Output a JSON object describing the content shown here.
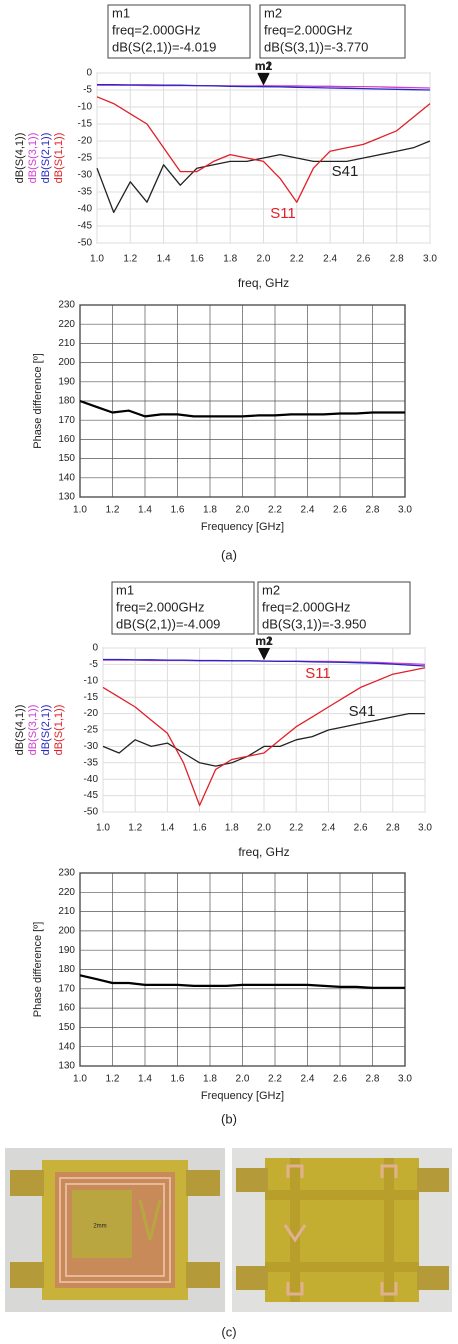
{
  "chart_data": [
    {
      "type": "line",
      "panel": "sparam",
      "x_label": "freq, GHz",
      "legend": "left-rotated",
      "grid": true,
      "x": [
        1.0,
        1.1,
        1.2,
        1.3,
        1.4,
        1.5,
        1.6,
        1.7,
        1.8,
        1.9,
        2.0,
        2.1,
        2.2,
        2.3,
        2.4,
        2.5,
        2.6,
        2.7,
        2.8,
        2.9,
        3.0
      ],
      "series": [
        {
          "name": "dB(S(4,1))",
          "color": "#222222",
          "values": [
            -28,
            -41,
            -32,
            -38,
            -27,
            -33,
            -28,
            -27,
            -26,
            -26,
            -25,
            -24,
            -25,
            -26,
            -26,
            -26,
            -25,
            -24,
            -23,
            -22,
            -20
          ]
        },
        {
          "name": "dB(S(3,1))",
          "color": "#d040d0",
          "values": [
            -3.6,
            -3.6,
            -3.6,
            -3.7,
            -3.7,
            -3.7,
            -3.7,
            -3.7,
            -3.8,
            -3.8,
            -3.77,
            -3.8,
            -3.8,
            -3.9,
            -3.9,
            -4,
            -4,
            -4.1,
            -4.2,
            -4.3,
            -4.4
          ]
        },
        {
          "name": "dB(S(2,1))",
          "color": "#2828c0",
          "values": [
            -3.4,
            -3.4,
            -3.5,
            -3.5,
            -3.6,
            -3.6,
            -3.7,
            -3.8,
            -3.9,
            -4,
            -4.02,
            -4.1,
            -4.2,
            -4.3,
            -4.4,
            -4.5,
            -4.6,
            -4.7,
            -4.8,
            -4.9,
            -5.0
          ]
        },
        {
          "name": "dB(S(1,1))",
          "color": "#e02028",
          "values": [
            -7,
            -9,
            -12,
            -15,
            -22,
            -29,
            -29,
            -26,
            -24,
            -25,
            -26,
            -31,
            -38,
            -28,
            -23,
            -22,
            -21,
            -19,
            -17,
            -13,
            -9
          ]
        }
      ],
      "annotations": [
        "S41",
        "S11"
      ],
      "markers": [
        {
          "name": "m1",
          "freq": 2.0,
          "freq_label": "freq=2.000GHz",
          "value": -4.019,
          "value_label": "dB(S(2,1))=-4.019"
        },
        {
          "name": "m2",
          "freq": 2.0,
          "freq_label": "freq=2.000GHz",
          "value": -3.77,
          "value_label": "dB(S(3,1))=-3.770"
        }
      ],
      "xlim": [
        1,
        3
      ],
      "ylim": [
        -50,
        0
      ],
      "xticks": [
        {
          "value": 1,
          "label": "1.0"
        },
        {
          "value": 1.2,
          "label": "1.2"
        },
        {
          "value": 1.4,
          "label": "1.4"
        },
        {
          "value": 1.6,
          "label": "1.6"
        },
        {
          "value": 1.8,
          "label": "1.8"
        },
        {
          "value": 2,
          "label": "2.0"
        },
        {
          "value": 2.2,
          "label": "2.2"
        },
        {
          "value": 2.4,
          "label": "2.4"
        },
        {
          "value": 2.6,
          "label": "2.6"
        },
        {
          "value": 2.8,
          "label": "2.8"
        },
        {
          "value": 3,
          "label": "3.0"
        }
      ],
      "yticks": [
        0,
        -5,
        -10,
        -15,
        -20,
        -25,
        -30,
        -35,
        -40,
        -45,
        -50
      ]
    },
    {
      "type": "line",
      "panel": "phase",
      "x_label": "Frequency [GHz]",
      "y_label": "Phase difference [º]",
      "grid": true,
      "x": [
        1.0,
        1.1,
        1.2,
        1.3,
        1.4,
        1.5,
        1.6,
        1.7,
        1.8,
        1.9,
        2.0,
        2.1,
        2.2,
        2.3,
        2.4,
        2.5,
        2.6,
        2.7,
        2.8,
        2.9,
        3.0
      ],
      "series": [
        {
          "name": null,
          "color": "#000000",
          "values": [
            180,
            177,
            174,
            175,
            172,
            173,
            173,
            172,
            172,
            172,
            172,
            172.5,
            172.5,
            173,
            173,
            173,
            173.5,
            173.5,
            174,
            174,
            174
          ]
        }
      ],
      "xlim": [
        1,
        3
      ],
      "ylim": [
        130,
        230
      ],
      "xticks": [
        {
          "value": 1,
          "label": "1.0"
        },
        {
          "value": 1.2,
          "label": "1.2"
        },
        {
          "value": 1.4,
          "label": "1.4"
        },
        {
          "value": 1.6,
          "label": "1.6"
        },
        {
          "value": 1.8,
          "label": "1.8"
        },
        {
          "value": 2,
          "label": "2.0"
        },
        {
          "value": 2.2,
          "label": "2.2"
        },
        {
          "value": 2.4,
          "label": "2.4"
        },
        {
          "value": 2.6,
          "label": "2.6"
        },
        {
          "value": 2.8,
          "label": "2.8"
        },
        {
          "value": 3,
          "label": "3.0"
        }
      ],
      "yticks": [
        130,
        140,
        150,
        160,
        170,
        180,
        190,
        200,
        210,
        220,
        230
      ]
    },
    {
      "type": "line",
      "panel": "sparam",
      "x_label": "freq, GHz",
      "legend": "left-rotated",
      "grid": true,
      "x": [
        1.0,
        1.1,
        1.2,
        1.3,
        1.4,
        1.5,
        1.6,
        1.7,
        1.8,
        1.9,
        2.0,
        2.1,
        2.2,
        2.3,
        2.4,
        2.5,
        2.6,
        2.7,
        2.8,
        2.9,
        3.0
      ],
      "series": [
        {
          "name": "dB(S(4,1))",
          "color": "#222222",
          "values": [
            -30,
            -32,
            -28,
            -30,
            -29,
            -32,
            -35,
            -36,
            -35,
            -33,
            -30,
            -30,
            -28,
            -27,
            -25,
            -24,
            -23,
            -22,
            -21,
            -20,
            -20
          ]
        },
        {
          "name": "dB(S(3,1))",
          "color": "#d040d0",
          "values": [
            -3.7,
            -3.7,
            -3.7,
            -3.8,
            -3.8,
            -3.8,
            -3.9,
            -3.9,
            -3.9,
            -3.9,
            -3.95,
            -4,
            -4,
            -4.1,
            -4.1,
            -4.2,
            -4.3,
            -4.4,
            -4.6,
            -4.8,
            -5.0
          ]
        },
        {
          "name": "dB(S(2,1))",
          "color": "#2828c0",
          "values": [
            -3.5,
            -3.5,
            -3.6,
            -3.6,
            -3.7,
            -3.7,
            -3.8,
            -3.8,
            -3.9,
            -3.9,
            -4.0,
            -4.1,
            -4.1,
            -4.2,
            -4.3,
            -4.4,
            -4.5,
            -4.7,
            -4.9,
            -5.2,
            -5.5
          ]
        },
        {
          "name": "dB(S(1,1))",
          "color": "#e02028",
          "values": [
            -12,
            -15,
            -18,
            -22,
            -26,
            -35,
            -48,
            -37,
            -34,
            -33,
            -32,
            -28,
            -24,
            -21,
            -18,
            -15,
            -12,
            -10,
            -8,
            -7,
            -6
          ]
        }
      ],
      "annotations": [
        "S11",
        "S41"
      ],
      "markers": [
        {
          "name": "m1",
          "freq": 2.0,
          "freq_label": "freq=2.000GHz",
          "value": -4.009,
          "value_label": "dB(S(2,1))=-4.009"
        },
        {
          "name": "m2",
          "freq": 2.0,
          "freq_label": "freq=2.000GHz",
          "value": -3.95,
          "value_label": "dB(S(3,1))=-3.950"
        }
      ],
      "xlim": [
        1,
        3
      ],
      "ylim": [
        -50,
        0
      ],
      "xticks": [
        {
          "value": 1,
          "label": "1.0"
        },
        {
          "value": 1.2,
          "label": "1.2"
        },
        {
          "value": 1.4,
          "label": "1.4"
        },
        {
          "value": 1.6,
          "label": "1.6"
        },
        {
          "value": 1.8,
          "label": "1.8"
        },
        {
          "value": 2,
          "label": "2.0"
        },
        {
          "value": 2.2,
          "label": "2.2"
        },
        {
          "value": 2.4,
          "label": "2.4"
        },
        {
          "value": 2.6,
          "label": "2.6"
        },
        {
          "value": 2.8,
          "label": "2.8"
        },
        {
          "value": 3,
          "label": "3.0"
        }
      ],
      "yticks": [
        0,
        -5,
        -10,
        -15,
        -20,
        -25,
        -30,
        -35,
        -40,
        -45,
        -50
      ]
    },
    {
      "type": "line",
      "panel": "phase",
      "x_label": "Frequency [GHz]",
      "y_label": "Phase difference [º]",
      "grid": true,
      "x": [
        1.0,
        1.1,
        1.2,
        1.3,
        1.4,
        1.5,
        1.6,
        1.7,
        1.8,
        1.9,
        2.0,
        2.1,
        2.2,
        2.3,
        2.4,
        2.5,
        2.6,
        2.7,
        2.8,
        2.9,
        3.0
      ],
      "series": [
        {
          "name": null,
          "color": "#000000",
          "values": [
            177,
            175,
            173,
            173,
            172,
            172,
            172,
            171.5,
            171.5,
            171.5,
            172,
            172,
            172,
            172,
            172,
            171.5,
            171,
            171,
            170.5,
            170.5,
            170.5
          ]
        }
      ],
      "xlim": [
        1,
        3
      ],
      "ylim": [
        130,
        230
      ],
      "xticks": [
        {
          "value": 1,
          "label": "1.0"
        },
        {
          "value": 1.2,
          "label": "1.2"
        },
        {
          "value": 1.4,
          "label": "1.4"
        },
        {
          "value": 1.6,
          "label": "1.6"
        },
        {
          "value": 1.8,
          "label": "1.8"
        },
        {
          "value": 2,
          "label": "2.0"
        },
        {
          "value": 2.2,
          "label": "2.2"
        },
        {
          "value": 2.4,
          "label": "2.4"
        },
        {
          "value": 2.6,
          "label": "2.6"
        },
        {
          "value": 2.8,
          "label": "2.8"
        },
        {
          "value": 3,
          "label": "3.0"
        }
      ],
      "yticks": [
        130,
        140,
        150,
        160,
        170,
        180,
        190,
        200,
        210,
        220,
        230
      ]
    }
  ],
  "captions": [
    "(a)",
    "(b)",
    "(c)"
  ],
  "photo_text": "2mm"
}
